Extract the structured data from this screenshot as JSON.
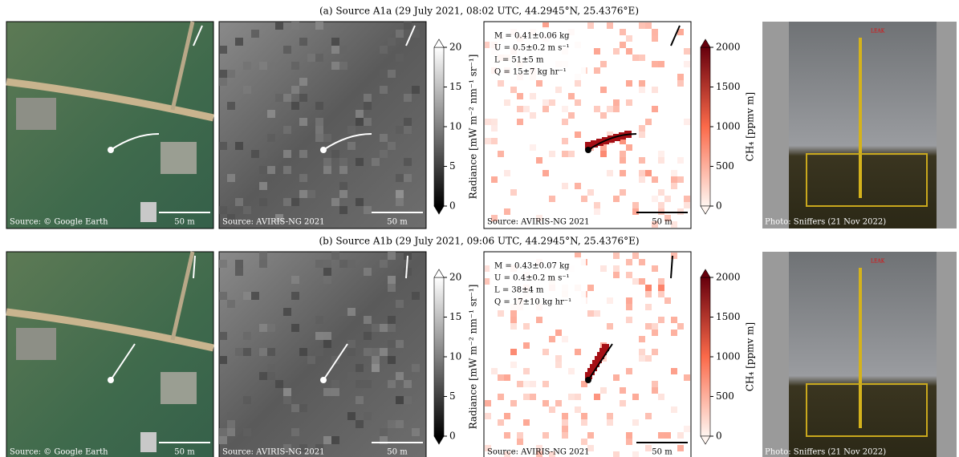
{
  "rows": [
    {
      "title": "(a) Source A1a (29 July 2021, 08:02 UTC, 44.2945°N, 25.4376°E)",
      "satellite": {
        "source": "Source: © Google Earth",
        "scale": "50 m"
      },
      "radiance": {
        "source": "Source: AVIRIS-NG 2021",
        "scale": "50 m"
      },
      "radiance_colorbar": {
        "label": "Radiance [mW m⁻² nm⁻¹ sr⁻¹]",
        "ticks": [
          0,
          5,
          10,
          15,
          20
        ]
      },
      "methane": {
        "stats": [
          "M = 0.41±0.06 kg",
          "U = 0.5±0.2 m s⁻¹",
          "L = 51±5 m",
          "Q = 15±7 kg hr⁻¹"
        ],
        "source": "Source: AVIRIS-NG 2021",
        "scale": "50 m"
      },
      "methane_colorbar": {
        "label": "CH₄ [ppmv m]",
        "ticks": [
          0,
          500,
          1000,
          1500,
          2000
        ]
      },
      "photo": {
        "leak": "LEAK",
        "source": "Photo: Sniffers (21 Nov 2022)"
      }
    },
    {
      "title": "(b) Source A1b (29 July 2021, 09:06 UTC, 44.2945°N, 25.4376°E)",
      "satellite": {
        "source": "Source: © Google Earth",
        "scale": "50 m"
      },
      "radiance": {
        "source": "Source: AVIRIS-NG 2021",
        "scale": "50 m"
      },
      "radiance_colorbar": {
        "label": "Radiance [mW m⁻² nm⁻¹ sr⁻¹]",
        "ticks": [
          0,
          5,
          10,
          15,
          20
        ]
      },
      "methane": {
        "stats": [
          "M = 0.43±0.07 kg",
          "U = 0.4±0.2 m s⁻¹",
          "L = 38±4 m",
          "Q = 17±10 kg hr⁻¹"
        ],
        "source": "Source: AVIRIS-NG 2021",
        "scale": "50 m"
      },
      "methane_colorbar": {
        "label": "CH₄ [ppmv m]",
        "ticks": [
          0,
          500,
          1000,
          1500,
          2000
        ]
      },
      "photo": {
        "leak": "LEAK",
        "source": "Photo: Sniffers (21 Nov 2022)"
      }
    }
  ]
}
